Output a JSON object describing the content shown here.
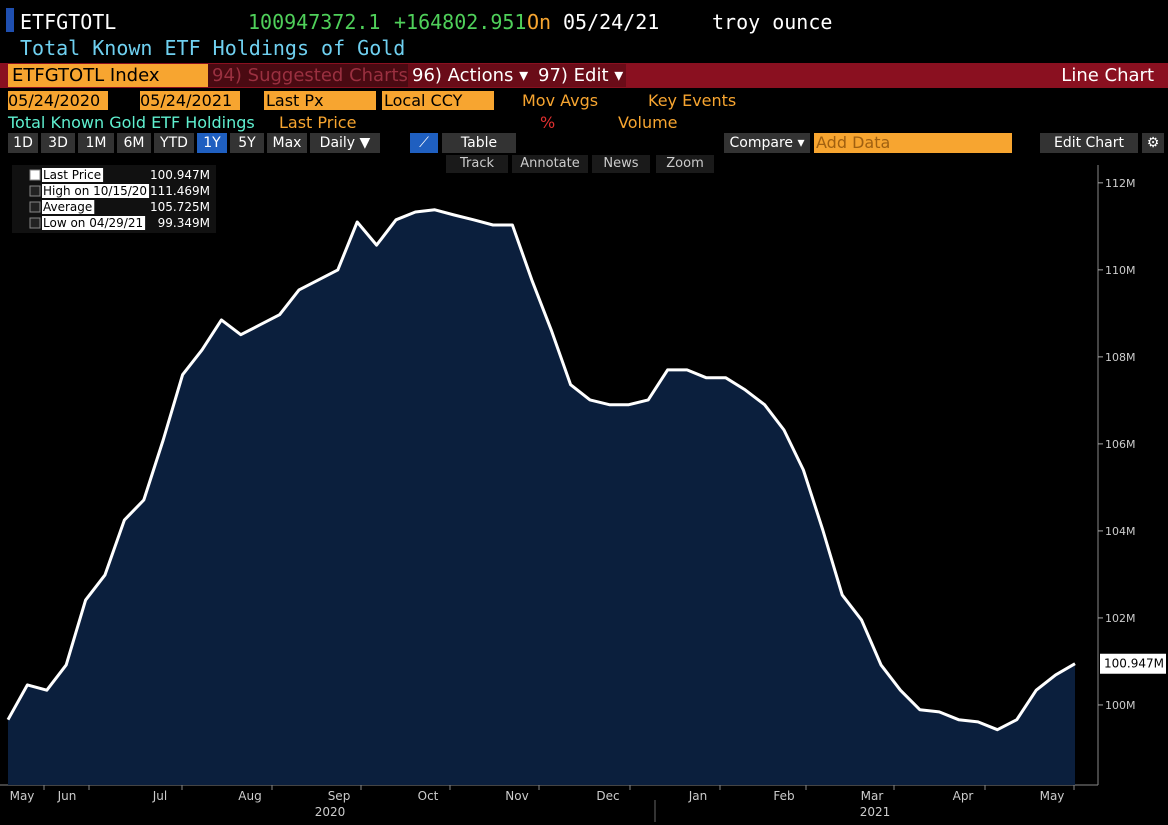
{
  "header": {
    "ticker": "ETFGTOTL",
    "value": "100947372.1",
    "change": "+164802.951",
    "on": "On",
    "date": "05/24/21",
    "unit": "troy ounce",
    "subtitle": "Total Known ETF Holdings of Gold"
  },
  "toolbar": {
    "security": "ETFGTOTL Index",
    "suggested": "94) Suggested Charts",
    "actions": "96) Actions ▾",
    "edit": "97) Edit ▾",
    "chart_type": "Line Chart"
  },
  "settings": {
    "start": "05/24/2020",
    "end": "05/24/2021",
    "field": "Last Px",
    "currency": "Local CCY",
    "mov_avgs": "Mov Avgs",
    "key_events": "Key Events"
  },
  "fields": {
    "name": "Total Known Gold ETF Holdings",
    "price": "Last Price",
    "pct": "%",
    "volume": "Volume"
  },
  "periods": [
    "1D",
    "3D",
    "1M",
    "6M",
    "YTD",
    "1Y",
    "5Y",
    "Max",
    "Daily ▼"
  ],
  "table": "Table",
  "compare": "Compare ▾",
  "add_data": "Add Data",
  "edit_chart": "Edit Chart",
  "tools": [
    "Track",
    "Annotate",
    "News",
    "Zoom"
  ],
  "legend": [
    [
      "Last Price",
      "100.947M"
    ],
    [
      "High on 10/15/20",
      "111.469M"
    ],
    [
      "Average",
      "105.725M"
    ],
    [
      "Low on 04/29/21",
      "99.349M"
    ]
  ],
  "chart_data": {
    "type": "line",
    "series": [
      {
        "name": "Last Price",
        "color": "#ffffff",
        "fill": "#0b1f3d",
        "values": [
          99.66,
          100.46,
          100.34,
          100.92,
          102.41,
          102.99,
          104.25,
          104.71,
          106.09,
          107.59,
          108.16,
          108.85,
          108.51,
          108.74,
          108.97,
          109.54,
          109.77,
          110.0,
          111.1,
          110.57,
          111.15,
          111.33,
          111.38,
          111.26,
          111.15,
          111.03,
          111.03,
          109.77,
          108.62,
          107.36,
          107.01,
          106.9,
          106.9,
          107.01,
          107.7,
          107.7,
          107.52,
          107.52,
          107.24,
          106.9,
          106.32,
          105.4,
          104.02,
          102.53,
          101.95,
          100.92,
          100.34,
          99.89,
          99.84,
          99.66,
          99.61,
          99.43,
          99.66,
          100.34,
          100.69,
          100.947
        ]
      }
    ],
    "end_label": "100.947M",
    "ylim": [
      98.16,
      112.41
    ],
    "yticks": [
      {
        "value": 100,
        "label": "100M"
      },
      {
        "value": 102,
        "label": "102M"
      },
      {
        "value": 104,
        "label": "104M"
      },
      {
        "value": 106,
        "label": "106M"
      },
      {
        "value": 108,
        "label": "108M"
      },
      {
        "value": 110,
        "label": "110M"
      },
      {
        "value": 112,
        "label": "112M"
      }
    ],
    "month_labels": [
      "May",
      "Jun",
      "Jul",
      "Aug",
      "Sep",
      "Oct",
      "Nov",
      "Dec",
      "Jan",
      "Feb",
      "Mar",
      "Apr",
      "May"
    ],
    "year_labels": [
      "2020",
      "2021"
    ]
  }
}
